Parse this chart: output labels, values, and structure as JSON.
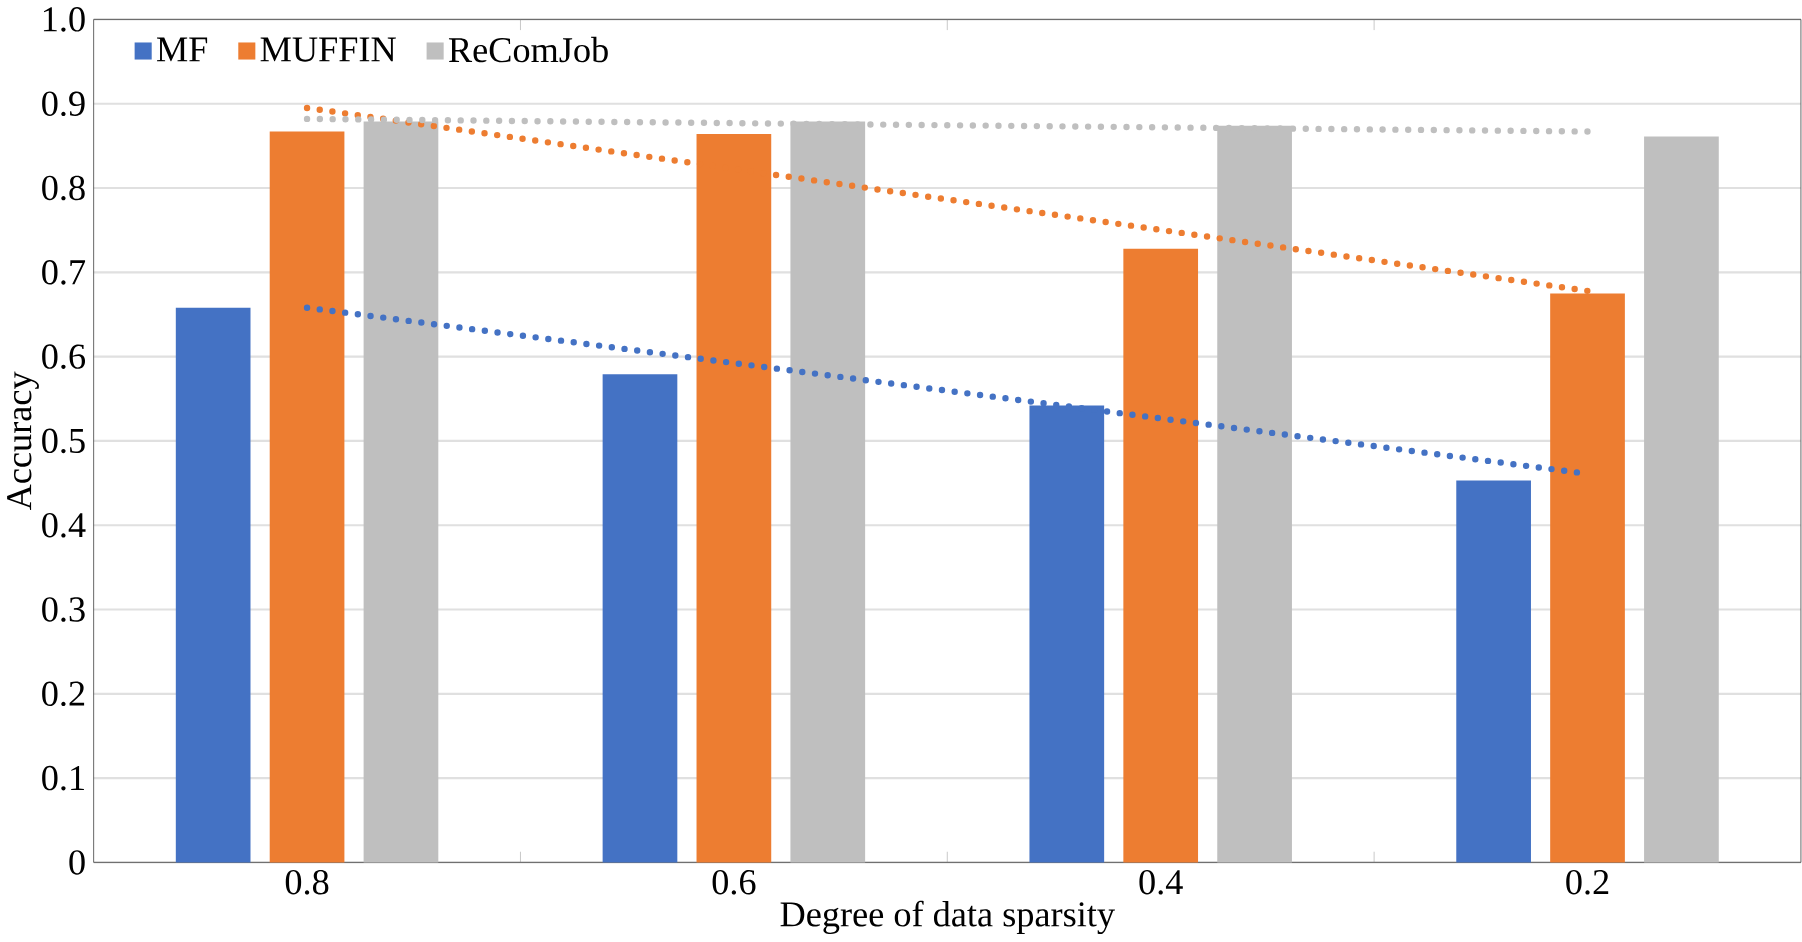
{
  "chart_data": {
    "type": "bar",
    "xlabel": "Degree of data sparsity",
    "ylabel": "Accuracy",
    "categories": [
      "0.8",
      "0.6",
      "0.4",
      "0.2"
    ],
    "series": [
      {
        "name": "MF",
        "color": "#4472c4",
        "values": [
          0.658,
          0.579,
          0.542,
          0.453
        ]
      },
      {
        "name": "MUFFIN",
        "color": "#ed7d31",
        "values": [
          0.867,
          0.864,
          0.728,
          0.675
        ]
      },
      {
        "name": "ReComJob",
        "color": "#bfbfbf",
        "values": [
          0.879,
          0.879,
          0.874,
          0.861
        ]
      },
      {
        "type": "line",
        "color": "#4472c4",
        "x": [
          "0.8",
          "0.2"
        ],
        "values": [
          0.658,
          0.461
        ],
        "line_style": "dotted"
      },
      {
        "type": "line",
        "color": "#ed7d31",
        "x": [
          "0.8",
          "0.2"
        ],
        "values": [
          0.895,
          0.678
        ],
        "line_style": "dotted"
      },
      {
        "type": "line",
        "color": "#bfbfbf",
        "x": [
          "0.8",
          "0.2"
        ],
        "values": [
          0.882,
          0.867
        ],
        "line_style": "dotted"
      }
    ],
    "ylim": [
      0,
      1.0
    ],
    "yticks": [
      0,
      0.1,
      0.2,
      0.3,
      0.4,
      0.5,
      0.6,
      0.7,
      0.8,
      0.9,
      {
        "value": 1.0,
        "label": "1.0"
      }
    ],
    "grid": "y",
    "legend": "top left"
  }
}
